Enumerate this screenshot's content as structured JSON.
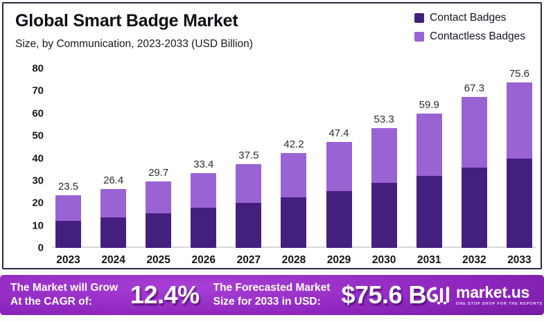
{
  "header": {
    "title": "Global Smart Badge Market",
    "subtitle": "Size, by Communication, 2023-2033 (USD Billion)"
  },
  "legend": {
    "items": [
      {
        "label": "Contact Badges",
        "color": "#44207e"
      },
      {
        "label": "Contactless Badges",
        "color": "#9a63d4"
      }
    ]
  },
  "chart_data": {
    "type": "bar",
    "stacked": true,
    "title": "Global Smart Badge Market",
    "subtitle": "Size, by Communication, 2023-2033 (USD Billion)",
    "xlabel": "",
    "ylabel": "USD Billion",
    "ylim": [
      0,
      80
    ],
    "yticks": [
      0,
      10,
      20,
      30,
      40,
      50,
      60,
      70,
      80
    ],
    "grid": false,
    "legend_position": "top-right",
    "categories": [
      "2023",
      "2024",
      "2025",
      "2026",
      "2027",
      "2028",
      "2029",
      "2030",
      "2031",
      "2032",
      "2033"
    ],
    "series": [
      {
        "name": "Contact Badges",
        "color": "#44207e",
        "values": [
          12.2,
          13.7,
          15.6,
          17.8,
          20.0,
          22.4,
          25.2,
          28.9,
          32.1,
          35.8,
          40.8
        ]
      },
      {
        "name": "Contactless Badges",
        "color": "#9a63d4",
        "values": [
          11.3,
          12.7,
          14.1,
          15.6,
          17.5,
          19.8,
          22.2,
          24.4,
          27.8,
          31.5,
          34.8
        ]
      }
    ],
    "totals": [
      23.5,
      26.4,
      29.7,
      33.4,
      37.5,
      42.2,
      47.4,
      53.3,
      59.9,
      67.3,
      75.6
    ]
  },
  "banner": {
    "cagr_label": [
      "The Market will Grow",
      "At the CAGR of:"
    ],
    "cagr_value": "12.4%",
    "forecast_label": [
      "The Forecasted Market",
      "Size for 2033 in USD:"
    ],
    "forecast_value": "$75.6 B",
    "brand": "market.us",
    "brand_tagline": "ONE STOP SHOP FOR THE REPORTS"
  },
  "colors": {
    "contact": "#44207e",
    "contactless": "#9a63d4",
    "card_border": "#2f2440",
    "banner_bright": "#a83fd6",
    "banner_dark": "#430862"
  }
}
